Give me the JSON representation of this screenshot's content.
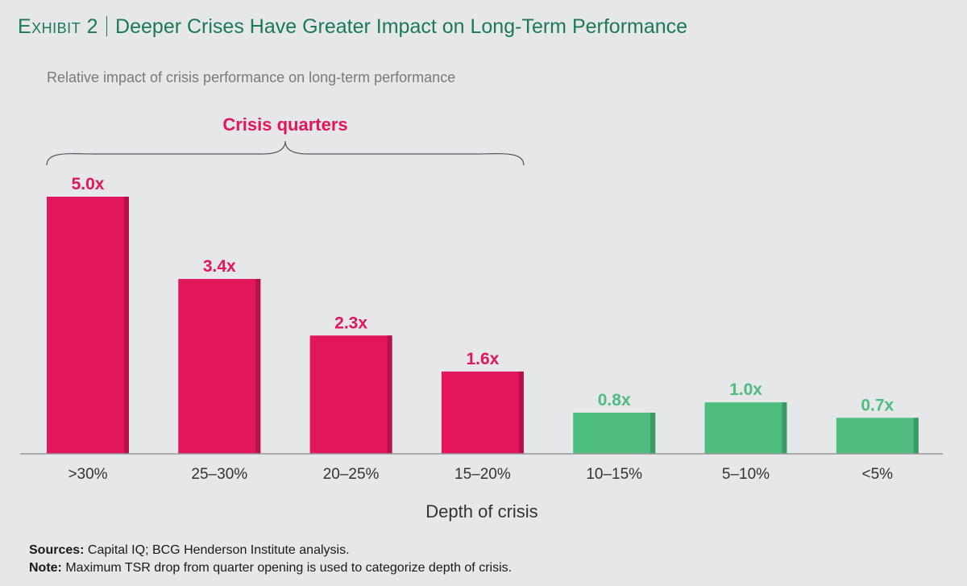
{
  "header": {
    "exhibit_label": "Exhibit 2",
    "title": "Deeper Crises Have Greater Impact on Long-Term Performance",
    "subtitle": "Relative impact of crisis performance on long-term performance"
  },
  "bracket": {
    "label": "Crisis quarters",
    "from_category": 0,
    "to_category": 3
  },
  "chart_data": {
    "type": "bar",
    "categories": [
      ">30%",
      "25–30%",
      "20–25%",
      "15–20%",
      "10–15%",
      "5–10%",
      "<5%"
    ],
    "values": [
      5.0,
      3.4,
      2.3,
      1.6,
      0.8,
      1.0,
      0.7
    ],
    "value_labels": [
      "5.0x",
      "3.4x",
      "2.3x",
      "1.6x",
      "0.8x",
      "1.0x",
      "0.7x"
    ],
    "groups": [
      "crisis",
      "crisis",
      "crisis",
      "crisis",
      "non-crisis",
      "non-crisis",
      "non-crisis"
    ],
    "xlabel": "Depth of crisis",
    "ylabel": "",
    "ylim": [
      0,
      5.0
    ],
    "grid": false,
    "colors": {
      "crisis": "#e2165a",
      "crisis_shade": "#b5124a",
      "non-crisis": "#4ebd7d",
      "non-crisis_shade": "#3a9a63",
      "axis": "#999999",
      "tick_label": "#333333",
      "bracket": "#555555"
    }
  },
  "footer": {
    "sources_label": "Sources:",
    "sources_text": "Capital IQ; BCG Henderson Institute analysis.",
    "note_label": "Note:",
    "note_text": "Maximum TSR drop from quarter opening is used to categorize depth of crisis."
  }
}
